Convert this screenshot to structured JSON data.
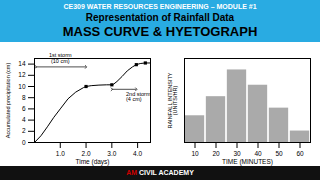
{
  "title": "CE309 WATER RESOURCES ENGINEERING – MODULE #1",
  "subtitle": [
    "Representation of Rainfall Data",
    "MASS CURVE & HYETOGRAPH"
  ],
  "caption": [
    {
      "text": "AM",
      "color": "#cc0000"
    },
    {
      "text": " CIVIL ACADEMY",
      "color": "#ffffff"
    }
  ],
  "chart_data": [
    {
      "type": "line",
      "x": [
        0,
        0.25,
        0.5,
        0.75,
        1.0,
        1.3,
        1.6,
        1.9,
        2.0,
        2.2,
        2.5,
        2.8,
        3.0,
        3.05,
        3.2,
        3.4,
        3.6,
        3.8,
        3.95,
        4.1,
        4.3,
        4.5
      ],
      "values": [
        0,
        1.2,
        2.8,
        4.5,
        6.0,
        7.8,
        9.0,
        9.8,
        10.0,
        10.15,
        10.25,
        10.3,
        10.3,
        10.35,
        10.9,
        11.8,
        12.8,
        13.5,
        13.9,
        14.1,
        14.2,
        14.2
      ],
      "color": "#000000",
      "line_style": "solid",
      "key_points": {
        "x": [
          2.0,
          3.0,
          3.95,
          4.3
        ],
        "values": [
          10.0,
          10.3,
          13.9,
          14.2
        ],
        "marker": "square",
        "color": "#000000"
      },
      "xlabel": "Time (days)",
      "ylabel": "Accumulated precipitation (cm)",
      "xlim": [
        0,
        4.5
      ],
      "ylim": [
        0,
        15
      ],
      "xticks": [
        1,
        2,
        3,
        4
      ],
      "yticks": [
        0,
        2,
        4,
        6,
        8,
        10,
        12,
        14
      ],
      "annotations": [
        {
          "text": "1st storm\n(10 cm)",
          "x": 1.0,
          "y": 14.2,
          "arrow": {
            "x1": 0.05,
            "x2": 2.0,
            "y": 13.5
          }
        },
        {
          "text": "2nd storm\n(4 cm)",
          "x": 3.55,
          "y": 9.0,
          "arrow": {
            "x1": 3.0,
            "x2": 3.95,
            "y": 9.5
          }
        }
      ]
    },
    {
      "type": "bar",
      "x": [
        10,
        20,
        30,
        40,
        50,
        60
      ],
      "values": [
        3.5,
        6.0,
        9.5,
        7.5,
        4.5,
        1.5
      ],
      "color": "#aaaaaa",
      "xlabel": "TIME (MINUTES)",
      "ylabel": "RAINFALL INTENSITY\n(UNITS/HR)",
      "xlim": [
        5,
        65
      ],
      "ylim": [
        0,
        11
      ],
      "xticks": [
        10,
        20,
        30,
        40,
        50,
        60
      ],
      "yticks": [],
      "tick_labels": "x"
    }
  ]
}
